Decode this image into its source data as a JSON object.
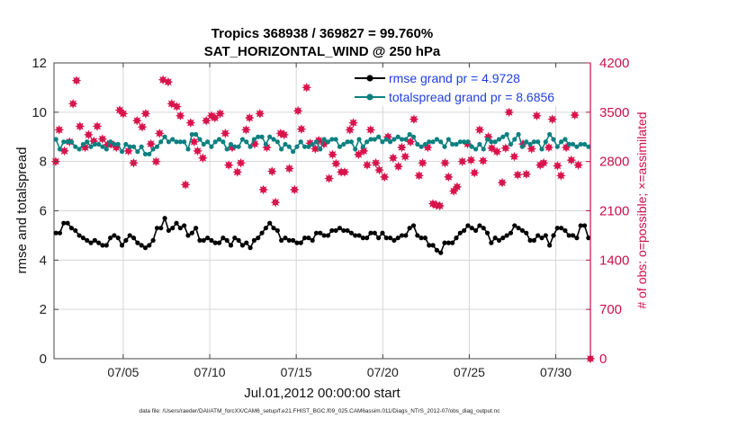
{
  "chart_data": {
    "type": "line",
    "title": "Tropics 368938 / 369827 = 99.760%",
    "subtitle": "SAT_HORIZONTAL_WIND @ 250 hPa",
    "xlabel": "Jul.01,2012 00:00:00 start",
    "ylabel_left": "rmse and totalspread",
    "ylabel_right": "# of obs: o=possible; ×=assimilated",
    "footer": "data file: /Users/raeder/DAI/ATM_forcXX/CAM6_setup/f.e21.FHIST_BGC.f09_025.CAM6assim.011/Diags_NTrS_2012-07/obs_diag_output.nc",
    "x_unit": "day of July 2012 (1 = Jul 01 00:00)",
    "xlim": [
      1,
      32
    ],
    "ylim_left": [
      0,
      12
    ],
    "ylim_right": [
      0,
      4200
    ],
    "x_ticks": [
      {
        "value": 5,
        "label": "07/05"
      },
      {
        "value": 10,
        "label": "07/10"
      },
      {
        "value": 15,
        "label": "07/15"
      },
      {
        "value": 20,
        "label": "07/20"
      },
      {
        "value": 25,
        "label": "07/25"
      },
      {
        "value": 30,
        "label": "07/30"
      }
    ],
    "y_ticks_left": [
      "0",
      "2",
      "4",
      "6",
      "8",
      "10",
      "12"
    ],
    "y_ticks_right": [
      "0",
      "700",
      "1400",
      "2100",
      "2800",
      "3500",
      "4200"
    ],
    "grid": true,
    "legend_position": "top-right",
    "colors": {
      "rmse": "#000000",
      "totalspread": "#0e8080",
      "obs": "#d8144c",
      "right_axis": "#c8124a",
      "legend_text": "#1f3fe0"
    },
    "series": [
      {
        "name": "rmse grand pr = 4.9728",
        "axis": "left",
        "values": [
          5.1,
          5.1,
          5.5,
          5.5,
          5.3,
          5.2,
          5.0,
          4.9,
          4.8,
          4.7,
          4.8,
          4.7,
          4.6,
          4.6,
          4.9,
          5.0,
          4.9,
          4.6,
          4.8,
          5.0,
          4.9,
          4.7,
          4.6,
          4.5,
          4.6,
          4.8,
          5.3,
          5.3,
          5.7,
          5.2,
          5.3,
          5.5,
          5.3,
          5.4,
          5.0,
          5.1,
          5.3,
          4.8,
          4.8,
          4.9,
          4.8,
          4.7,
          4.7,
          4.9,
          4.8,
          4.6,
          4.9,
          4.8,
          4.6,
          4.7,
          4.5,
          4.8,
          4.9,
          5.1,
          5.3,
          5.5,
          5.3,
          5.2,
          4.8,
          4.9,
          4.8,
          4.8,
          4.7,
          4.7,
          4.9,
          4.9,
          4.8,
          5.1,
          5.1,
          5.0,
          5.0,
          5.2,
          5.2,
          5.3,
          5.2,
          5.2,
          5.1,
          5.0,
          5.0,
          4.9,
          4.9,
          5.1,
          5.1,
          4.9,
          5.1,
          4.9,
          4.9,
          4.8,
          4.9,
          5.0,
          5.0,
          5.3,
          5.4,
          5.0,
          4.9,
          4.9,
          4.6,
          4.6,
          4.4,
          4.3,
          4.7,
          4.7,
          4.7,
          4.9,
          5.1,
          5.2,
          5.4,
          5.3,
          5.2,
          5.4,
          5.3,
          5.1,
          4.7,
          4.9,
          4.8,
          4.9,
          5.0,
          5.1,
          5.4,
          5.3,
          5.2,
          5.1,
          4.8,
          4.8,
          5.0,
          4.9,
          5.0,
          4.6,
          5.0,
          5.3,
          5.3,
          5.2,
          5.0,
          5.0,
          4.9,
          5.4,
          5.4,
          4.9
        ],
        "marker": "dot"
      },
      {
        "name": "totalspread grand pr = 8.6856",
        "axis": "left",
        "values": [
          8.9,
          8.5,
          8.8,
          8.8,
          8.8,
          8.6,
          8.5,
          8.7,
          8.8,
          8.6,
          8.7,
          8.7,
          8.6,
          8.5,
          8.8,
          8.7,
          8.7,
          8.4,
          8.7,
          8.6,
          8.6,
          8.4,
          8.6,
          8.3,
          8.3,
          8.5,
          8.6,
          8.8,
          9.0,
          8.8,
          8.9,
          8.8,
          8.8,
          8.8,
          8.5,
          9.1,
          9.1,
          8.9,
          8.7,
          8.8,
          8.6,
          8.8,
          8.9,
          8.8,
          8.5,
          8.7,
          8.6,
          8.6,
          8.9,
          8.8,
          8.6,
          8.9,
          9.0,
          9.0,
          8.7,
          9.0,
          8.9,
          8.8,
          8.5,
          8.7,
          8.6,
          8.4,
          8.6,
          8.8,
          8.6,
          8.6,
          8.7,
          8.8,
          8.5,
          8.9,
          8.8,
          8.9,
          8.9,
          8.6,
          8.7,
          8.8,
          8.8,
          8.5,
          8.9,
          8.6,
          8.8,
          8.9,
          8.9,
          9.0,
          8.8,
          8.9,
          8.8,
          8.9,
          9.0,
          8.9,
          8.9,
          9.1,
          9.0,
          8.7,
          8.6,
          8.7,
          8.8,
          8.8,
          8.9,
          8.8,
          8.6,
          8.9,
          8.7,
          8.7,
          8.8,
          8.8,
          8.8,
          8.6,
          8.5,
          8.7,
          8.5,
          8.9,
          8.8,
          8.8,
          8.9,
          9.0,
          9.1,
          8.7,
          8.9,
          9.1,
          8.6,
          8.8,
          8.7,
          8.8,
          8.8,
          8.5,
          8.8,
          9.1,
          8.9,
          8.6,
          8.8,
          8.9,
          8.7,
          8.7,
          8.6,
          8.7,
          8.7,
          8.6
        ],
        "marker": "dot"
      },
      {
        "name": "# of obs: o=possible; ×=assimilated",
        "axis": "right",
        "marker": "star",
        "x": [
          1.1,
          1.3,
          1.6,
          1.9,
          2.1,
          2.3,
          2.5,
          2.8,
          3.0,
          3.3,
          3.5,
          3.8,
          4.1,
          4.3,
          4.6,
          4.8,
          5.0,
          5.3,
          5.6,
          5.8,
          6.1,
          6.3,
          6.6,
          6.9,
          7.1,
          7.3,
          7.6,
          7.8,
          8.1,
          8.3,
          8.6,
          8.9,
          9.1,
          9.3,
          9.6,
          9.8,
          10.1,
          10.3,
          10.6,
          10.9,
          11.1,
          11.3,
          11.6,
          11.8,
          12.1,
          12.3,
          12.6,
          12.9,
          13.1,
          13.3,
          13.6,
          13.8,
          14.1,
          14.3,
          14.6,
          14.9,
          15.1,
          15.3,
          15.6,
          15.8,
          16.1,
          16.3,
          16.6,
          16.9,
          17.1,
          17.3,
          17.6,
          17.8,
          18.1,
          18.3,
          18.6,
          18.9,
          19.1,
          19.3,
          19.6,
          19.8,
          20.1,
          20.3,
          20.6,
          20.9,
          21.1,
          21.3,
          21.6,
          21.8,
          22.1,
          22.3,
          22.6,
          22.9,
          23.1,
          23.3,
          23.6,
          23.8,
          24.1,
          24.3,
          24.6,
          24.9,
          25.1,
          25.3,
          25.6,
          25.8,
          26.1,
          26.3,
          26.6,
          26.9,
          27.1,
          27.3,
          27.6,
          27.8,
          28.1,
          28.3,
          28.6,
          28.9,
          29.1,
          29.3,
          29.6,
          29.8,
          30.1,
          30.3,
          30.6,
          30.9,
          31.1,
          31.3
        ],
        "values": [
          2800,
          3250,
          2950,
          3080,
          3620,
          3950,
          3300,
          3000,
          3180,
          3090,
          3300,
          3120,
          3040,
          3050,
          3000,
          3530,
          3480,
          2950,
          2780,
          3380,
          3290,
          3480,
          3050,
          2800,
          3200,
          3960,
          3930,
          3620,
          3580,
          3450,
          2470,
          3350,
          3080,
          2950,
          2850,
          3380,
          3450,
          3420,
          3480,
          3200,
          2750,
          3000,
          2650,
          2780,
          3250,
          3420,
          3050,
          3480,
          2400,
          3000,
          2660,
          2220,
          3200,
          3180,
          2700,
          2400,
          3520,
          3260,
          3850,
          3060,
          2980,
          3100,
          3050,
          2560,
          2900,
          2770,
          2650,
          2650,
          3250,
          3350,
          2900,
          2950,
          2750,
          3250,
          2780,
          2680,
          2580,
          3150,
          2850,
          2730,
          3000,
          2870,
          3080,
          3400,
          2600,
          2780,
          3000,
          2200,
          2180,
          2170,
          2780,
          2580,
          2380,
          2440,
          2800,
          3050,
          2820,
          2640,
          3250,
          2810,
          3150,
          2990,
          2940,
          2500,
          2990,
          3500,
          2870,
          2610,
          3050,
          2620,
          2980,
          3450,
          2750,
          2780,
          3000,
          3400,
          2740,
          2600,
          3000,
          2820,
          3460,
          2750
        ]
      }
    ],
    "extra_points": [
      {
        "x": 32,
        "value": 0,
        "axis": "right",
        "marker": "star"
      }
    ]
  }
}
